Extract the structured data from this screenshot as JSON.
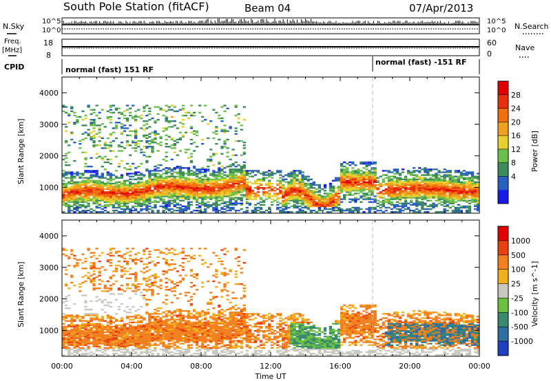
{
  "header": {
    "station_title": "South Pole Station (fitACF)",
    "beam": "Beam 04",
    "date": "07/Apr/2013"
  },
  "side_labels": {
    "n_sky": "N.Sky",
    "freq": "Freq.",
    "freq_unit": "[MHz]",
    "cpid": "CPID",
    "n_search": "N.Search",
    "nave": "Nave"
  },
  "top_panels": {
    "nsky_ticks": [
      "10^5",
      "10^0"
    ],
    "nsearch_ticks": [
      "10^5",
      "10^0"
    ],
    "freq_ticks": [
      "18",
      "8"
    ],
    "nave_ticks": [
      "60",
      "0"
    ],
    "cpid_left": "normal (fast) 151 RF",
    "cpid_right": "normal (fast) -151 RF",
    "cpid_switch_hour": 18.0
  },
  "chart_data": [
    {
      "type": "heatmap",
      "panel": "power",
      "x_range": [
        0,
        24
      ],
      "xlabel": "Time UT",
      "x_tick_labels": [
        "00:00",
        "04:00",
        "08:00",
        "12:00",
        "16:00",
        "20:00",
        "00:00"
      ],
      "ylabel": "Slant Range [km]",
      "ylim": [
        180,
        4500
      ],
      "y_ticks": [
        1000,
        2000,
        3000,
        4000
      ],
      "colorbar_label": "Power [dB]",
      "colorbar_ticks": [
        4,
        8,
        12,
        16,
        20,
        24,
        28
      ],
      "colorbar_range": [
        0,
        30
      ],
      "colors": [
        "#1a1ae6",
        "#2a60c0",
        "#3d8a5a",
        "#6cbf4c",
        "#e8d030",
        "#f0a020",
        "#f07010",
        "#e83010",
        "#e00000"
      ]
    },
    {
      "type": "heatmap",
      "panel": "velocity",
      "x_range": [
        0,
        24
      ],
      "xlabel": "Time UT",
      "x_tick_labels": [
        "00:00",
        "04:00",
        "08:00",
        "12:00",
        "16:00",
        "20:00",
        "00:00"
      ],
      "ylabel": "Slant Range [km]",
      "ylim": [
        180,
        4500
      ],
      "y_ticks": [
        1000,
        2000,
        3000,
        4000
      ],
      "colorbar_label": "Velocity [m s^-1]",
      "colorbar_ticks": [
        1000,
        500,
        100,
        25,
        -25,
        -100,
        -500,
        -1000
      ],
      "colors": [
        "#2040c0",
        "#2f6fa0",
        "#3a8a70",
        "#6cc040",
        "#c8c8c0",
        "#f0b020",
        "#f08020",
        "#e84010",
        "#e00000"
      ]
    }
  ],
  "colors": {
    "background": "#ffffff",
    "axis": "#000000",
    "switch_line": "#bbbbbb"
  }
}
